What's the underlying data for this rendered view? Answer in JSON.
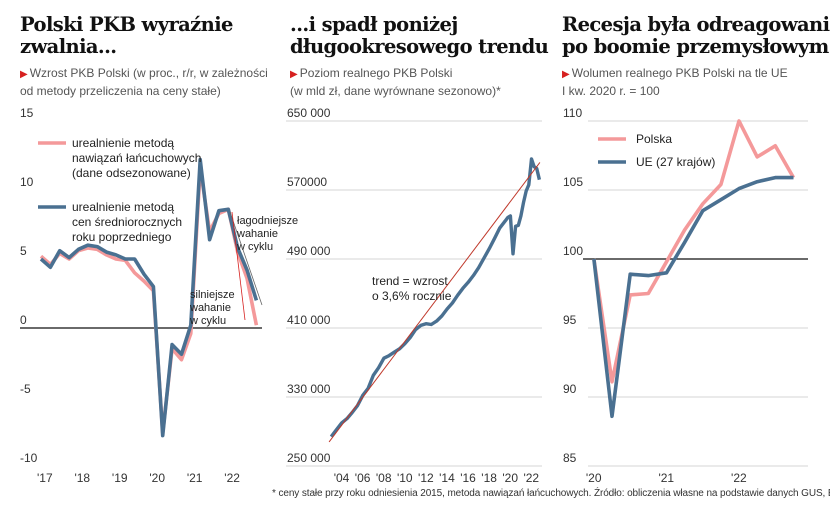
{
  "colors": {
    "pink": "#f4999a",
    "steel": "#4a7091",
    "red": "#d6201f",
    "trendline": "#c0392b",
    "accent_triangle": "#d6201f"
  },
  "panels": [
    {
      "title_line1": "Polski PKB wyraźnie",
      "title_line2": "zwalnia...",
      "sub_line1": "Wzrost PKB Polski (w proc., r/r, w zależności",
      "sub_line2": "od metody przeliczenia na ceny stałe)"
    },
    {
      "title_line1": "...i spadł poniżej",
      "title_line2": "długookresowego trendu",
      "sub_line1": "Poziom realnego PKB Polski",
      "sub_line2": "(w mld zł, dane wyrównane sezonowo)*"
    },
    {
      "title_line1": "Recesja była odreagowaniem",
      "title_line2": "po boomie przemysłowym",
      "sub_line1": "Wolumen realnego PKB Polski na tle UE",
      "sub_line2": "I kw. 2020 r. = 100"
    }
  ],
  "footnote": "* ceny stałe przy roku odniesienia 2015, metoda nawiązań łańcuchowych. Źródło: obliczenia własne na podstawie danych GUS, Eurostatu",
  "chart_data": [
    {
      "type": "line",
      "ylim": [
        -10,
        15
      ],
      "yticks": [
        "15",
        "10",
        "5",
        "0",
        "-5",
        "-10"
      ],
      "ytick_values": [
        15,
        10,
        5,
        0,
        -5,
        -10
      ],
      "xticks": [
        "'17",
        "'18",
        "'19",
        "'20",
        "'21",
        "'22"
      ],
      "xtick_values": [
        2017,
        2018,
        2019,
        2020,
        2021,
        2022
      ],
      "x": [
        2017.0,
        2017.25,
        2017.5,
        2017.75,
        2018.0,
        2018.25,
        2018.5,
        2018.75,
        2019.0,
        2019.25,
        2019.5,
        2019.75,
        2020.0,
        2020.25,
        2020.5,
        2020.75,
        2021.0,
        2021.25,
        2021.5,
        2021.75,
        2022.0,
        2022.25,
        2022.5,
        2022.75
      ],
      "series": [
        {
          "name": "urealnienie metodą nawiązań łańcuchowych (dane odseznowane)",
          "legend_lines": [
            "urealnienie metodą",
            "nawiązań łańcuchowych",
            "(dane odsezonowane)"
          ],
          "color": "pink",
          "values": [
            5.2,
            4.6,
            5.4,
            5.0,
            5.6,
            5.8,
            5.7,
            5.3,
            5.0,
            4.9,
            4.0,
            3.4,
            2.7,
            -7.6,
            -1.5,
            -2.3,
            -0.4,
            11.6,
            7.0,
            8.3,
            8.6,
            5.5,
            3.6,
            0.2
          ]
        },
        {
          "name": "urealnienie metodą cen średniorocznych roku poprzedniego",
          "legend_lines": [
            "urealnienie metodą",
            "cen średniorocznych",
            "roku poprzedniego"
          ],
          "color": "steel",
          "values": [
            5.0,
            4.4,
            5.6,
            5.1,
            5.7,
            6.0,
            5.9,
            5.5,
            5.3,
            5.0,
            5.0,
            3.9,
            3.0,
            -7.8,
            -1.2,
            -1.9,
            0.2,
            12.2,
            6.4,
            8.5,
            8.6,
            5.8,
            4.2,
            2.0
          ]
        }
      ],
      "annotations": [
        {
          "lines": [
            "łagodniejsze",
            "wahanie",
            "w cyklu"
          ]
        },
        {
          "lines": [
            "silniejsze",
            "wahanie",
            "w cyklu"
          ]
        }
      ]
    },
    {
      "type": "line",
      "ylim": [
        250000,
        650000
      ],
      "yticks": [
        "650 000",
        "570000",
        "490 000",
        "410 000",
        "330 000",
        "250 000"
      ],
      "ytick_values": [
        650000,
        570000,
        490000,
        410000,
        330000,
        250000
      ],
      "xticks": [
        "'04",
        "'06",
        "'08",
        "'10",
        "'12",
        "'14",
        "'16",
        "'18",
        "'20",
        "'22"
      ],
      "xtick_values": [
        2004,
        2006,
        2008,
        2010,
        2012,
        2014,
        2016,
        2018,
        2020,
        2022
      ],
      "series": [
        {
          "name": "Poziom realnego PKB",
          "color": "steel",
          "x": [
            2003.0,
            2003.5,
            2004.0,
            2004.5,
            2005.0,
            2005.5,
            2006.0,
            2006.5,
            2007.0,
            2007.5,
            2008.0,
            2008.5,
            2009.0,
            2009.5,
            2010.0,
            2010.5,
            2011.0,
            2011.5,
            2012.0,
            2012.5,
            2013.0,
            2013.5,
            2014.0,
            2014.5,
            2015.0,
            2015.5,
            2016.0,
            2016.5,
            2017.0,
            2017.5,
            2018.0,
            2018.5,
            2019.0,
            2019.5,
            2019.75,
            2020.0,
            2020.25,
            2020.5,
            2020.75,
            2021.0,
            2021.25,
            2021.5,
            2021.75,
            2022.0,
            2022.25,
            2022.5,
            2022.75
          ],
          "values": [
            284000,
            292000,
            300000,
            305000,
            312000,
            320000,
            332000,
            340000,
            355000,
            364000,
            375000,
            378000,
            382000,
            386000,
            392000,
            399000,
            408000,
            413000,
            415000,
            414000,
            418000,
            424000,
            432000,
            439000,
            448000,
            456000,
            463000,
            471000,
            480000,
            491000,
            502000,
            514000,
            526000,
            534000,
            538000,
            540000,
            496000,
            528000,
            529000,
            540000,
            556000,
            569000,
            576000,
            606000,
            597000,
            595000,
            582000
          ]
        },
        {
          "name": "trend",
          "color": "trendline",
          "x": [
            2002.8,
            2022.8
          ],
          "values": [
            278000,
            602000
          ]
        }
      ],
      "annotation_lines": [
        "trend = wzrost",
        "o 3,6% rocznie"
      ]
    },
    {
      "type": "line",
      "ylim": [
        85,
        110
      ],
      "yticks": [
        "110",
        "105",
        "100",
        "95",
        "90",
        "85"
      ],
      "ytick_values": [
        110,
        105,
        100,
        95,
        90,
        85
      ],
      "xticks": [
        "'20",
        "'21",
        "'22"
      ],
      "xtick_values": [
        2020,
        2021,
        2022
      ],
      "x": [
        2020.0,
        2020.25,
        2020.5,
        2020.75,
        2021.0,
        2021.25,
        2021.5,
        2021.75,
        2022.0,
        2022.25,
        2022.5,
        2022.75
      ],
      "series": [
        {
          "name": "Polska",
          "color": "pink",
          "values": [
            100,
            91.1,
            97.4,
            97.5,
            99.8,
            102.1,
            104.0,
            105.4,
            110.0,
            107.4,
            108.2,
            105.9
          ]
        },
        {
          "name": "UE (27 krajów)",
          "color": "steel",
          "values": [
            100,
            88.6,
            98.9,
            98.8,
            99.0,
            101.2,
            103.5,
            104.3,
            105.1,
            105.6,
            105.9,
            105.9
          ]
        }
      ]
    }
  ]
}
